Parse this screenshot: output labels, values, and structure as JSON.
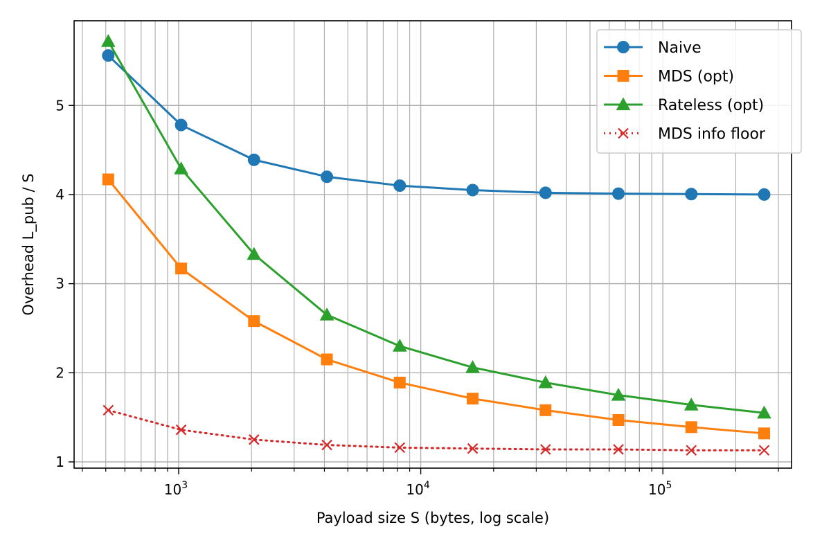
{
  "chart_data": {
    "type": "line",
    "title": "",
    "xlabel": "Payload size S (bytes, log scale)",
    "ylabel": "Overhead L_pub / S",
    "xscale": "log",
    "xlim": [
      370,
      340000
    ],
    "ylim": [
      0.93,
      5.95
    ],
    "grid": true,
    "legend_position": "top-right",
    "x": [
      512,
      1024,
      2048,
      4096,
      8192,
      16384,
      32768,
      65536,
      131072,
      262144
    ],
    "x_tick_labels": [
      {
        "base": "10",
        "exp": "3",
        "value": 1000
      },
      {
        "base": "10",
        "exp": "4",
        "value": 10000
      },
      {
        "base": "10",
        "exp": "5",
        "value": 100000
      }
    ],
    "y_ticks": [
      "1",
      "2",
      "3",
      "4",
      "5"
    ],
    "series": [
      {
        "name": "Naive",
        "color": "#1f77b4",
        "marker": "circle",
        "linestyle": "solid",
        "values": [
          5.56,
          4.78,
          4.39,
          4.2,
          4.1,
          4.05,
          4.02,
          4.01,
          4.005,
          4.0
        ]
      },
      {
        "name": "MDS (opt)",
        "color": "#ff7f0e",
        "marker": "square",
        "linestyle": "solid",
        "values": [
          4.17,
          3.17,
          2.58,
          2.15,
          1.89,
          1.71,
          1.58,
          1.47,
          1.39,
          1.32
        ]
      },
      {
        "name": "Rateless (opt)",
        "color": "#2ca02c",
        "marker": "triangle",
        "linestyle": "solid",
        "values": [
          5.72,
          4.29,
          3.33,
          2.65,
          2.3,
          2.06,
          1.89,
          1.75,
          1.64,
          1.55
        ]
      },
      {
        "name": "MDS info floor",
        "color": "#d62728",
        "marker": "x",
        "linestyle": "dotted",
        "values": [
          1.58,
          1.36,
          1.25,
          1.19,
          1.16,
          1.15,
          1.14,
          1.14,
          1.13,
          1.13
        ]
      }
    ]
  }
}
